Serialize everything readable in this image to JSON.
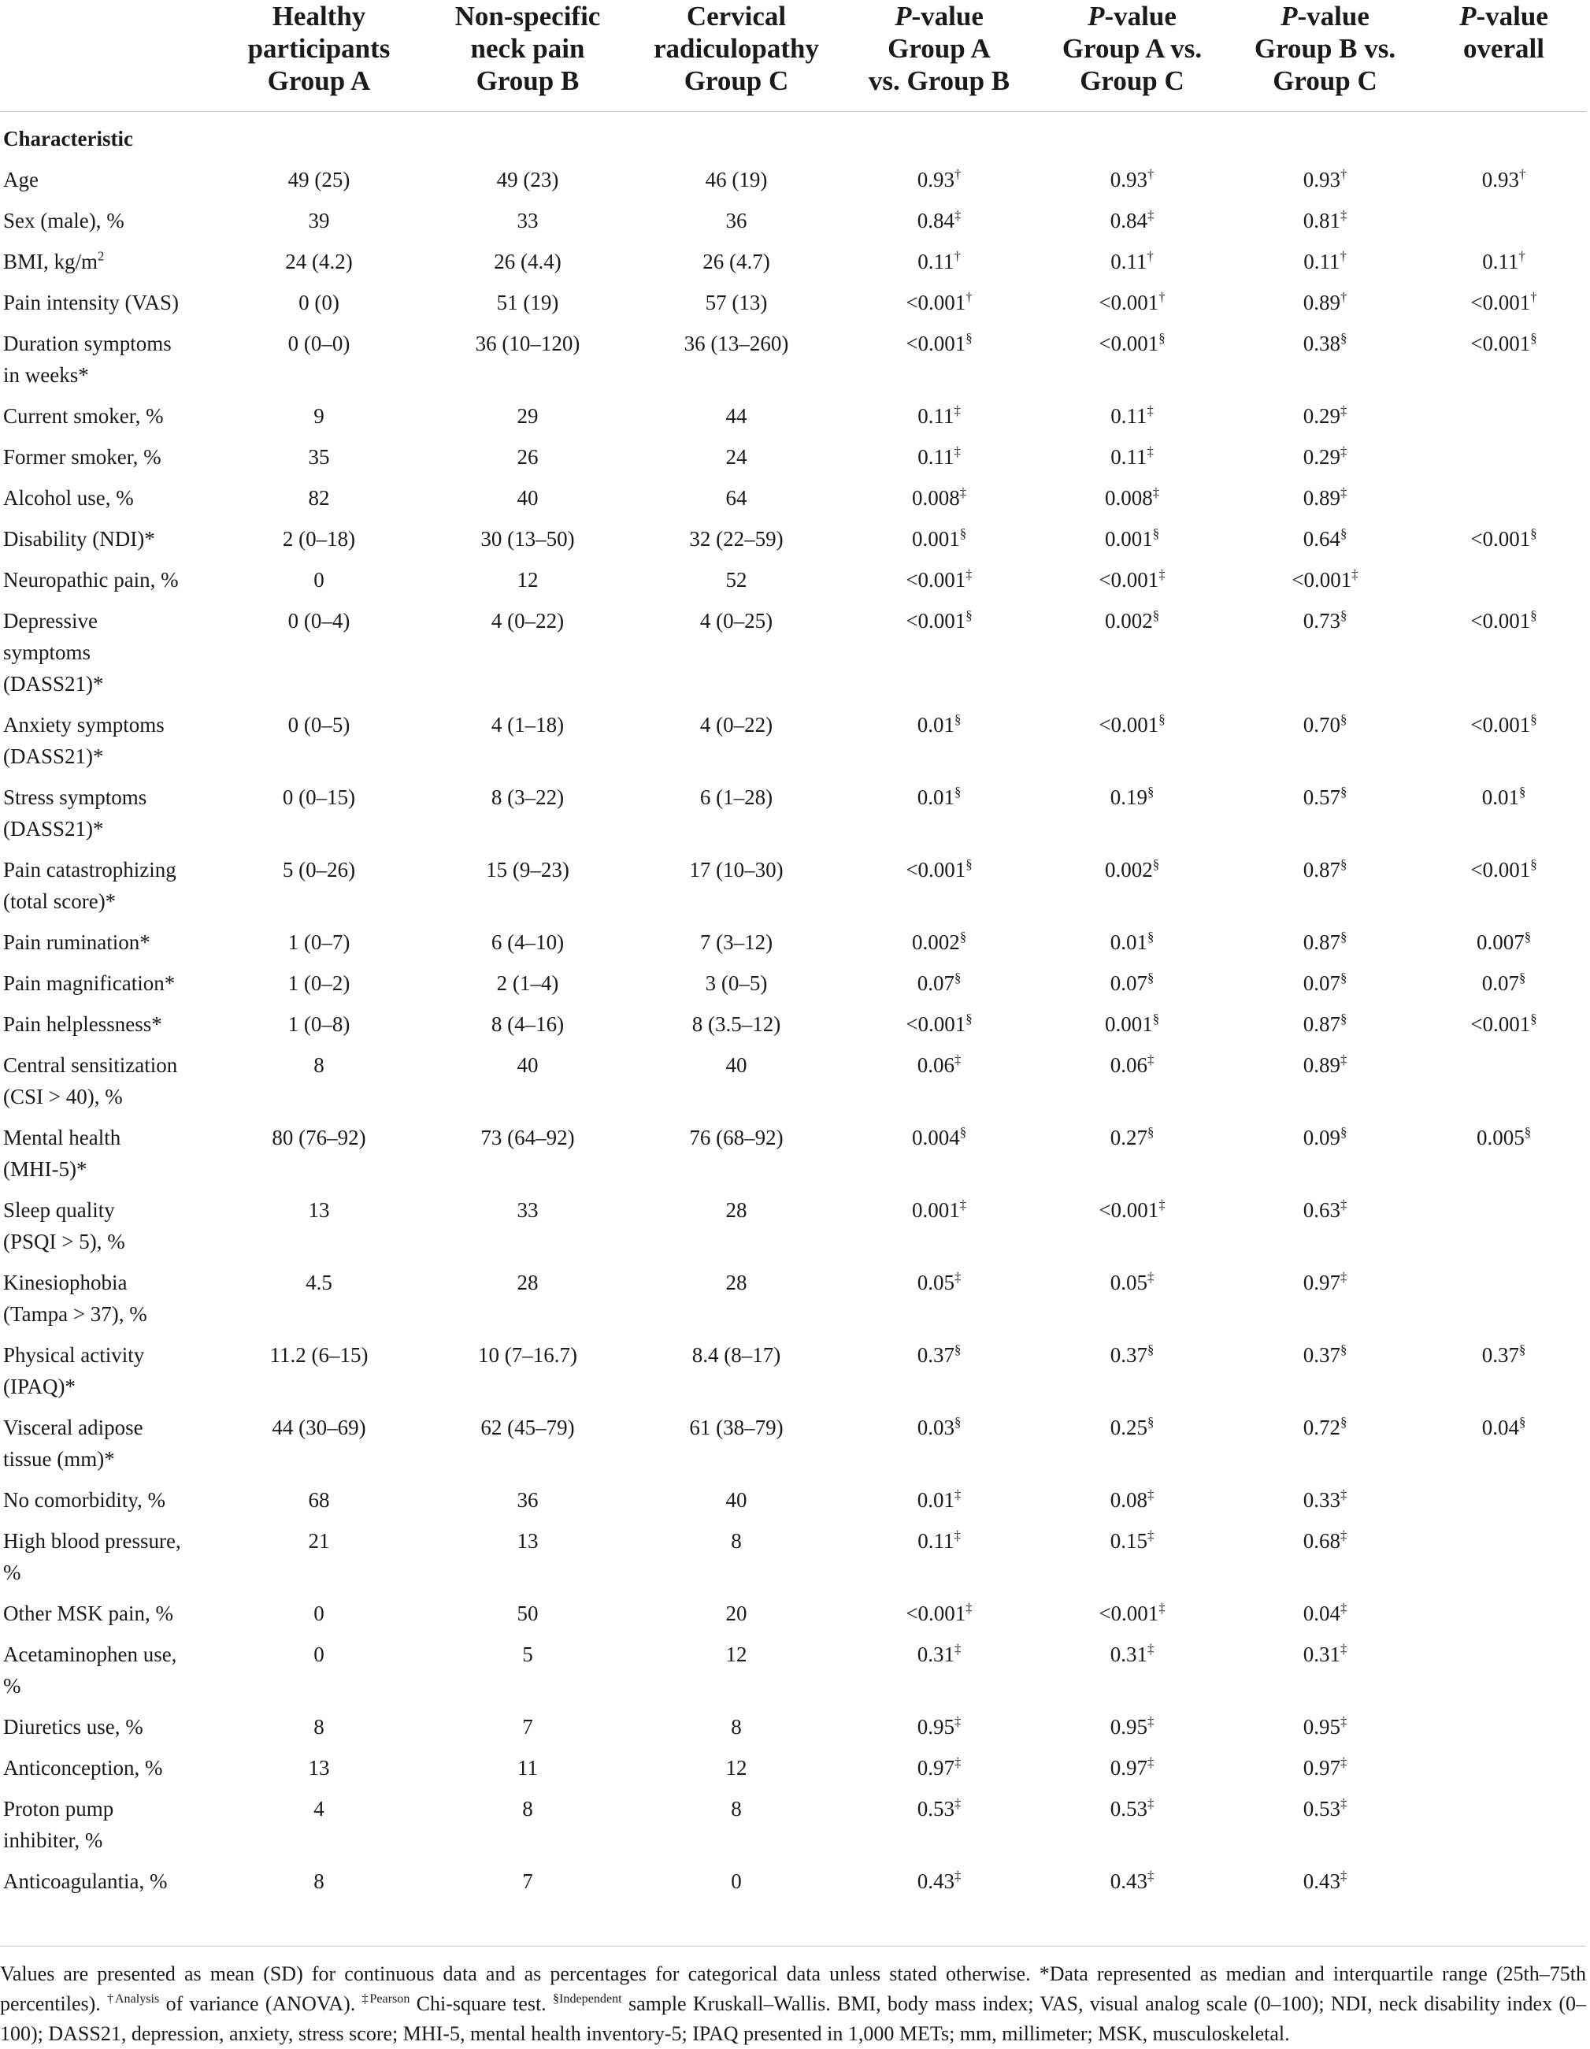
{
  "table": {
    "headers": [
      [
        ""
      ],
      [
        "Healthy",
        "participants",
        "Group A"
      ],
      [
        "Non-specific",
        "neck pain",
        "Group B"
      ],
      [
        "Cervical",
        "radiculopathy",
        "Group C"
      ],
      [
        "|P|-value",
        "Group A",
        "vs. Group B"
      ],
      [
        "|P|-value",
        "Group A vs.",
        "Group C"
      ],
      [
        "|P|-value",
        "Group B vs.",
        "Group C"
      ],
      [
        "|P|-value",
        "overall"
      ]
    ],
    "section_label": "Characteristic",
    "rows": [
      {
        "label": [
          "Age"
        ],
        "cells": [
          "49 (25)",
          "49 (23)",
          "46 (19)",
          "0.93^†",
          "0.93^†",
          "0.93^†",
          "0.93^†"
        ]
      },
      {
        "label": [
          "Sex (male), %"
        ],
        "cells": [
          "39",
          "33",
          "36",
          "0.84^‡",
          "0.84^‡",
          "0.81^‡",
          ""
        ]
      },
      {
        "label": [
          "BMI, kg/m^2"
        ],
        "cells": [
          "24 (4.2)",
          "26 (4.4)",
          "26 (4.7)",
          "0.11^†",
          "0.11^†",
          "0.11^†",
          "0.11^†"
        ]
      },
      {
        "label": [
          "Pain intensity (VAS)"
        ],
        "cells": [
          "0 (0)",
          "51 (19)",
          "57 (13)",
          "<0.001^†",
          "<0.001^†",
          "0.89^†",
          "<0.001^†"
        ]
      },
      {
        "label": [
          "Duration symptoms",
          "in weeks*"
        ],
        "cells": [
          "0 (0–0)",
          "36 (10–120)",
          "36 (13–260)",
          "<0.001^§",
          "<0.001^§",
          "0.38^§",
          "<0.001^§"
        ]
      },
      {
        "label": [
          "Current smoker, %"
        ],
        "cells": [
          "9",
          "29",
          "44",
          "0.11^‡",
          "0.11^‡",
          "0.29^‡",
          ""
        ]
      },
      {
        "label": [
          "Former smoker, %"
        ],
        "cells": [
          "35",
          "26",
          "24",
          "0.11^‡",
          "0.11^‡",
          "0.29^‡",
          ""
        ]
      },
      {
        "label": [
          "Alcohol use, %"
        ],
        "cells": [
          "82",
          "40",
          "64",
          "0.008^‡",
          "0.008^‡",
          "0.89^‡",
          ""
        ]
      },
      {
        "label": [
          "Disability (NDI)*"
        ],
        "cells": [
          "2 (0–18)",
          "30 (13–50)",
          "32 (22–59)",
          "0.001^§",
          "0.001^§",
          "0.64^§",
          "<0.001^§"
        ]
      },
      {
        "label": [
          "Neuropathic pain, %"
        ],
        "cells": [
          "0",
          "12",
          "52",
          "<0.001^‡",
          "<0.001^‡",
          "<0.001^‡",
          ""
        ]
      },
      {
        "label": [
          "Depressive",
          "symptoms",
          "(DASS21)*"
        ],
        "cells": [
          "0 (0–4)",
          "4 (0–22)",
          "4 (0–25)",
          "<0.001^§",
          "0.002^§",
          "0.73^§",
          "<0.001^§"
        ]
      },
      {
        "label": [
          "Anxiety symptoms",
          "(DASS21)*"
        ],
        "cells": [
          "0 (0–5)",
          "4 (1–18)",
          "4 (0–22)",
          "0.01^§",
          "<0.001^§",
          "0.70^§",
          "<0.001^§"
        ]
      },
      {
        "label": [
          "Stress symptoms",
          "(DASS21)*"
        ],
        "cells": [
          "0 (0–15)",
          "8 (3–22)",
          "6 (1–28)",
          "0.01^§",
          "0.19^§",
          "0.57^§",
          "0.01^§"
        ]
      },
      {
        "label": [
          "Pain catastrophizing",
          "(total score)*"
        ],
        "cells": [
          "5 (0–26)",
          "15 (9–23)",
          "17 (10–30)",
          "<0.001^§",
          "0.002^§",
          "0.87^§",
          "<0.001^§"
        ]
      },
      {
        "label": [
          "Pain rumination*"
        ],
        "cells": [
          "1 (0–7)",
          "6 (4–10)",
          "7 (3–12)",
          "0.002^§",
          "0.01^§",
          "0.87^§",
          "0.007^§"
        ]
      },
      {
        "label": [
          "Pain magnification*"
        ],
        "cells": [
          "1 (0–2)",
          "2 (1–4)",
          "3 (0–5)",
          "0.07^§",
          "0.07^§",
          "0.07^§",
          "0.07^§"
        ]
      },
      {
        "label": [
          "Pain helplessness*"
        ],
        "cells": [
          "1 (0–8)",
          "8 (4–16)",
          "8 (3.5–12)",
          "<0.001^§",
          "0.001^§",
          "0.87^§",
          "<0.001^§"
        ]
      },
      {
        "label": [
          "Central sensitization",
          "(CSI > 40), %"
        ],
        "cells": [
          "8",
          "40",
          "40",
          "0.06^‡",
          "0.06^‡",
          "0.89^‡",
          ""
        ]
      },
      {
        "label": [
          "Mental health",
          "(MHI-5)*"
        ],
        "cells": [
          "80 (76–92)",
          "73 (64–92)",
          "76 (68–92)",
          "0.004^§",
          "0.27^§",
          "0.09^§",
          "0.005^§"
        ]
      },
      {
        "label": [
          "Sleep quality",
          "(PSQI > 5), %"
        ],
        "cells": [
          "13",
          "33",
          "28",
          "0.001^‡",
          "<0.001^‡",
          "0.63^‡",
          ""
        ]
      },
      {
        "label": [
          "Kinesiophobia",
          "(Tampa > 37), %"
        ],
        "cells": [
          "4.5",
          "28",
          "28",
          "0.05^‡",
          "0.05^‡",
          "0.97^‡",
          ""
        ]
      },
      {
        "label": [
          "Physical activity",
          "(IPAQ)*"
        ],
        "cells": [
          "11.2 (6–15)",
          "10 (7–16.7)",
          "8.4 (8–17)",
          "0.37^§",
          "0.37^§",
          "0.37^§",
          "0.37^§"
        ]
      },
      {
        "label": [
          "Visceral adipose",
          "tissue (mm)*"
        ],
        "cells": [
          "44 (30–69)",
          "62 (45–79)",
          "61 (38–79)",
          "0.03^§",
          "0.25^§",
          "0.72^§",
          "0.04^§"
        ]
      },
      {
        "label": [
          "No comorbidity, %"
        ],
        "cells": [
          "68",
          "36",
          "40",
          "0.01^‡",
          "0.08^‡",
          "0.33^‡",
          ""
        ]
      },
      {
        "label": [
          "High blood pressure,",
          "%"
        ],
        "cells": [
          "21",
          "13",
          "8",
          "0.11^‡",
          "0.15^‡",
          "0.68^‡",
          ""
        ]
      },
      {
        "label": [
          "Other MSK pain, %"
        ],
        "cells": [
          "0",
          "50",
          "20",
          "<0.001^‡",
          "<0.001^‡",
          "0.04^‡",
          ""
        ]
      },
      {
        "label": [
          "Acetaminophen use,",
          "%"
        ],
        "cells": [
          "0",
          "5",
          "12",
          "0.31^‡",
          "0.31^‡",
          "0.31^‡",
          ""
        ]
      },
      {
        "label": [
          "Diuretics use, %"
        ],
        "cells": [
          "8",
          "7",
          "8",
          "0.95^‡",
          "0.95^‡",
          "0.95^‡",
          ""
        ]
      },
      {
        "label": [
          "Anticonception, %"
        ],
        "cells": [
          "13",
          "11",
          "12",
          "0.97^‡",
          "0.97^‡",
          "0.97^‡",
          ""
        ]
      },
      {
        "label": [
          "Proton pump",
          "inhibiter, %"
        ],
        "cells": [
          "4",
          "8",
          "8",
          "0.53^‡",
          "0.53^‡",
          "0.53^‡",
          ""
        ]
      },
      {
        "label": [
          "Anticoagulantia, %"
        ],
        "cells": [
          "8",
          "7",
          "0",
          "0.43^‡",
          "0.43^‡",
          "0.43^‡",
          ""
        ]
      }
    ]
  },
  "footnote": "Values are presented as mean (SD) for continuous data and as percentages for categorical data unless stated otherwise. *Data represented as median and interquartile range (25th–75th percentiles). ^†Analysis of variance (ANOVA). ^‡Pearson Chi-square test. ^§Independent sample Kruskall–Wallis. BMI, body mass index; VAS, visual analog scale (0–100); NDI, neck disability index (0–100); DASS21, depression, anxiety, stress score; MHI-5, mental health inventory-5; IPAQ presented in 1,000 METs; mm, millimeter; MSK, musculoskeletal."
}
